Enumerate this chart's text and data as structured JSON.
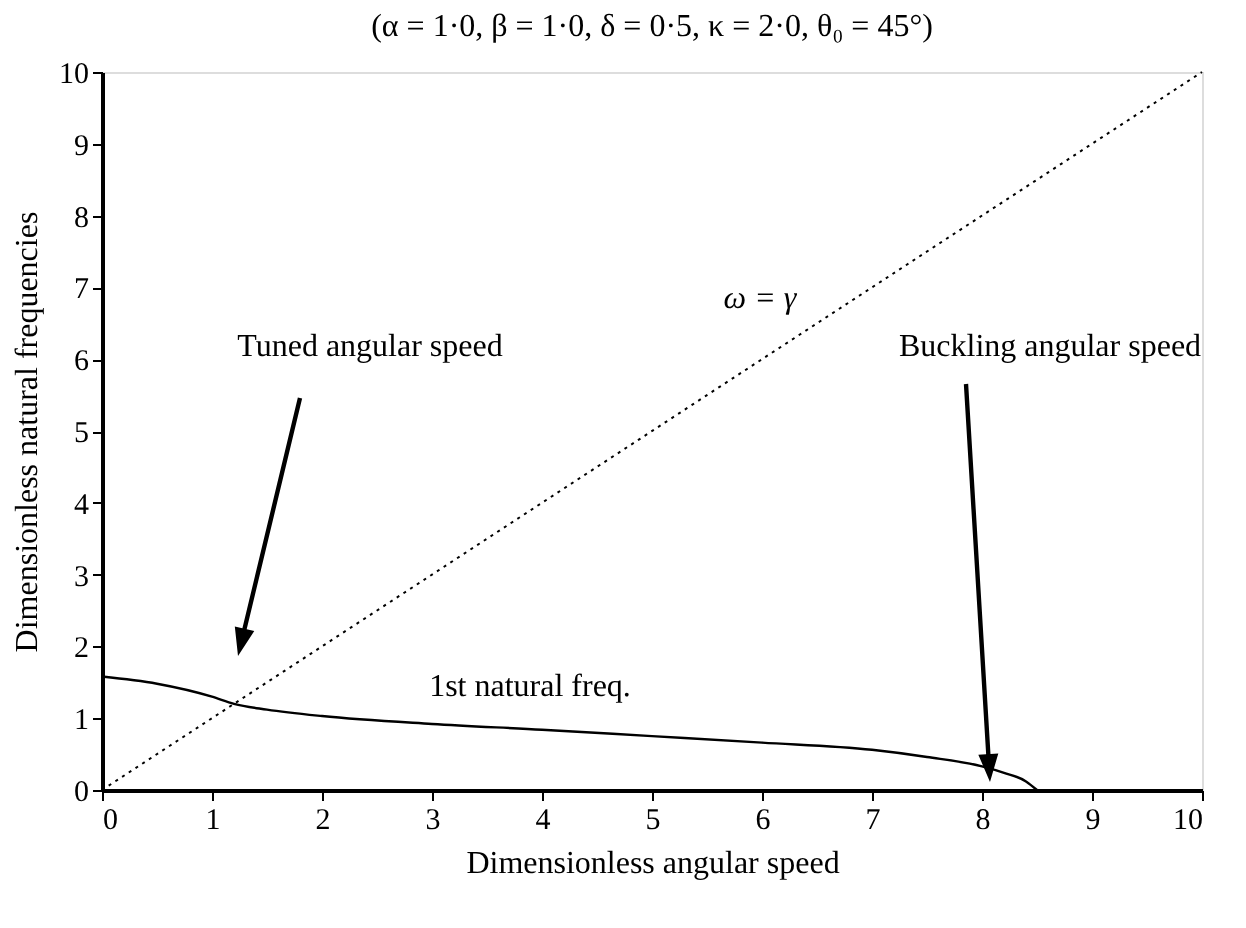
{
  "chart_data": {
    "type": "line",
    "title": "(α = 1·0, β = 1·0, δ = 0·5, κ = 2·0, θ₀ = 45°)",
    "xlabel": "Dimensionless angular speed",
    "ylabel": "Dimensionless natural frequencies",
    "series": [
      {
        "color": "#000000",
        "line_style": "solid",
        "x": [
          0,
          0.5,
          1,
          1.2,
          1.5,
          2,
          3,
          4,
          5,
          6,
          7,
          7.5,
          8,
          8.2,
          8.4,
          8.5
        ],
        "values": [
          1.58,
          1.48,
          1.3,
          1.2,
          1.12,
          1.03,
          0.92,
          0.84,
          0.75,
          0.66,
          0.56,
          0.46,
          0.33,
          0.24,
          0.12,
          0
        ]
      },
      {
        "color": "#000000",
        "line_style": "dotted",
        "x": [
          0,
          10
        ],
        "values": [
          0,
          10
        ]
      }
    ],
    "annotations": [
      "Tuned angular speed",
      "Buckling angular speed",
      "ω = γ",
      "1st natural freq."
    ],
    "xlim": [
      0,
      10
    ],
    "ylim": [
      0,
      10
    ],
    "xticks": [
      0,
      1,
      2,
      3,
      4,
      5,
      6,
      7,
      8,
      9,
      10
    ],
    "yticks": [
      0,
      1,
      2,
      3,
      4,
      5,
      6,
      7,
      8,
      9,
      10
    ],
    "grid": false,
    "marker": "none"
  }
}
